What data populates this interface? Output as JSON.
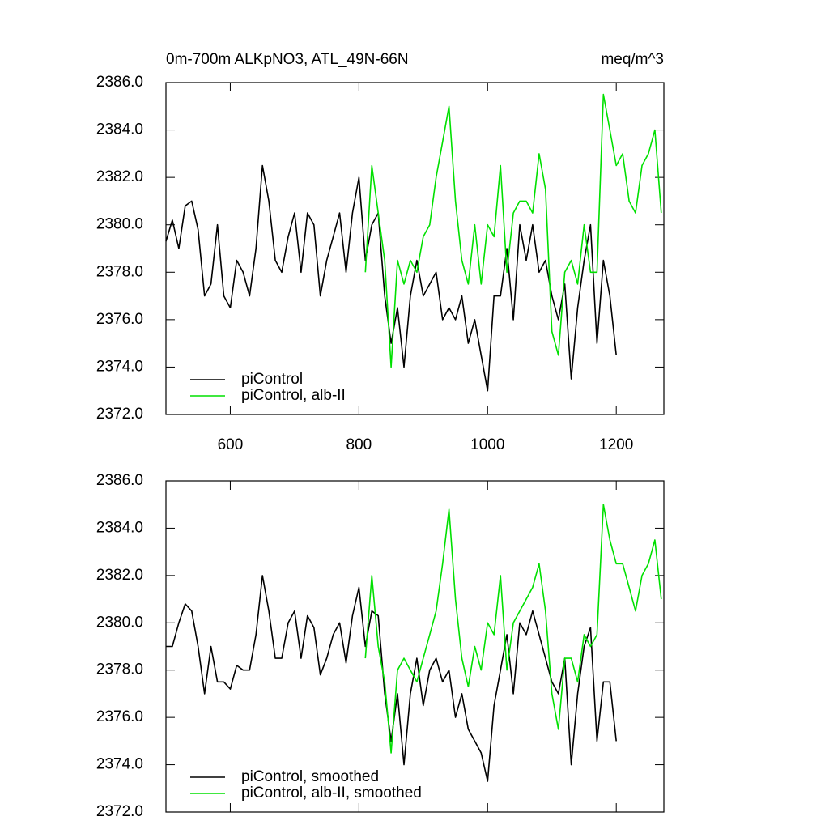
{
  "chart_data": [
    {
      "type": "line",
      "title": "0m-700m ALKpNO3, ATL_49N-66N",
      "units": "meq/m^3",
      "x": [
        500,
        510,
        520,
        530,
        540,
        550,
        560,
        570,
        580,
        590,
        600,
        610,
        620,
        630,
        640,
        650,
        660,
        670,
        680,
        690,
        700,
        710,
        720,
        730,
        740,
        750,
        760,
        770,
        780,
        790,
        800,
        810,
        820,
        830,
        840,
        850,
        860,
        870,
        880,
        890,
        900,
        910,
        920,
        930,
        940,
        950,
        960,
        970,
        980,
        990,
        1000,
        1010,
        1020,
        1030,
        1040,
        1050,
        1060,
        1070,
        1080,
        1090,
        1100,
        1110,
        1120,
        1130,
        1140,
        1150,
        1160,
        1170,
        1180,
        1190,
        1200,
        1210,
        1220,
        1230,
        1240,
        1250,
        1260,
        1270
      ],
      "series": [
        {
          "name": "piControl",
          "color": "#000000",
          "values": [
            2379.3,
            2380.2,
            2379.0,
            2380.8,
            2381.0,
            2379.8,
            2377.0,
            2377.5,
            2380.0,
            2377.0,
            2376.5,
            2378.5,
            2378.0,
            2377.0,
            2379.0,
            2382.5,
            2381.0,
            2378.5,
            2378.0,
            2379.5,
            2380.5,
            2378.0,
            2380.5,
            2380.0,
            2377.0,
            2378.5,
            2379.5,
            2380.5,
            2378.0,
            2380.5,
            2382.0,
            2378.5,
            2380.0,
            2380.5,
            2377.0,
            2375.0,
            2376.5,
            2374.0,
            2377.0,
            2378.5,
            2377.0,
            2377.5,
            2378.0,
            2376.0,
            2376.5,
            2376.0,
            2377.0,
            2375.0,
            2376.0,
            2374.5,
            2373.0,
            2377.0,
            2377.0,
            2379.0,
            2376.0,
            2380.0,
            2378.5,
            2380.0,
            2378.0,
            2378.5,
            2377.0,
            2376.0,
            2377.5,
            2373.5,
            2376.5,
            2378.5,
            2380.0,
            2375.0,
            2378.5,
            2377.0,
            2374.5,
            null,
            null,
            null,
            null,
            null,
            null,
            null
          ]
        },
        {
          "name": "piControl, alb-II",
          "color": "#00e000",
          "values": [
            null,
            null,
            null,
            null,
            null,
            null,
            null,
            null,
            null,
            null,
            null,
            null,
            null,
            null,
            null,
            null,
            null,
            null,
            null,
            null,
            null,
            null,
            null,
            null,
            null,
            null,
            null,
            null,
            null,
            null,
            null,
            2378.0,
            2382.5,
            2380.5,
            2378.5,
            2374.0,
            2378.5,
            2377.5,
            2378.5,
            2378.0,
            2379.5,
            2380.0,
            2382.0,
            2383.5,
            2385.0,
            2381.0,
            2378.5,
            2377.5,
            2380.0,
            2377.5,
            2380.0,
            2379.5,
            2382.5,
            2378.0,
            2380.5,
            2381.0,
            2381.0,
            2380.5,
            2383.0,
            2381.5,
            2375.5,
            2374.5,
            2378.0,
            2378.5,
            2377.5,
            2380.0,
            2378.0,
            2378.0,
            2385.5,
            2384.0,
            2382.5,
            2383.0,
            2381.0,
            2380.5,
            2382.5,
            2383.0,
            2384.0,
            2380.5
          ]
        }
      ],
      "xlim": [
        500,
        1274
      ],
      "xticks": [
        600,
        800,
        1000,
        1200
      ],
      "xtick_labels": true,
      "ylim": [
        2372,
        2386
      ],
      "yticks": [
        {
          "value": 2372,
          "label": "2372.0"
        },
        {
          "value": 2374,
          "label": "2374.0"
        },
        {
          "value": 2376,
          "label": "2376.0"
        },
        {
          "value": 2378,
          "label": "2378.0"
        },
        {
          "value": 2380,
          "label": "2380.0"
        },
        {
          "value": 2382,
          "label": "2382.0"
        },
        {
          "value": 2384,
          "label": "2384.0"
        },
        {
          "value": 2386,
          "label": "2386.0"
        }
      ],
      "legend": "lower left"
    },
    {
      "type": "line",
      "x": [
        500,
        510,
        520,
        530,
        540,
        550,
        560,
        570,
        580,
        590,
        600,
        610,
        620,
        630,
        640,
        650,
        660,
        670,
        680,
        690,
        700,
        710,
        720,
        730,
        740,
        750,
        760,
        770,
        780,
        790,
        800,
        810,
        820,
        830,
        840,
        850,
        860,
        870,
        880,
        890,
        900,
        910,
        920,
        930,
        940,
        950,
        960,
        970,
        980,
        990,
        1000,
        1010,
        1020,
        1030,
        1040,
        1050,
        1060,
        1070,
        1080,
        1090,
        1100,
        1110,
        1120,
        1130,
        1140,
        1150,
        1160,
        1170,
        1180,
        1190,
        1200,
        1210,
        1220,
        1230,
        1240,
        1250,
        1260,
        1270
      ],
      "series": [
        {
          "name": "piControl, smoothed",
          "color": "#000000",
          "values": [
            2379.0,
            2379.0,
            2380.0,
            2380.8,
            2380.5,
            2379.0,
            2377.0,
            2379.0,
            2377.5,
            2377.5,
            2377.2,
            2378.2,
            2378.0,
            2378.0,
            2379.5,
            2382.0,
            2380.5,
            2378.5,
            2378.5,
            2380.0,
            2380.5,
            2378.5,
            2380.3,
            2379.8,
            2377.8,
            2378.5,
            2379.5,
            2380.0,
            2378.3,
            2380.3,
            2381.5,
            2379.0,
            2380.5,
            2380.3,
            2377.0,
            2375.0,
            2377.0,
            2374.0,
            2377.0,
            2378.5,
            2376.5,
            2378.0,
            2378.5,
            2377.5,
            2378.0,
            2376.0,
            2377.0,
            2375.5,
            2375.0,
            2374.5,
            2373.3,
            2376.5,
            2378.0,
            2379.5,
            2377.0,
            2380.0,
            2379.5,
            2380.5,
            2379.5,
            2378.5,
            2377.5,
            2377.0,
            2378.5,
            2374.0,
            2377.0,
            2379.0,
            2379.8,
            2375.0,
            2377.5,
            2377.5,
            2375.0,
            null,
            null,
            null,
            null,
            null,
            null,
            null
          ]
        },
        {
          "name": "piControl, alb-II, smoothed",
          "color": "#00e000",
          "values": [
            null,
            null,
            null,
            null,
            null,
            null,
            null,
            null,
            null,
            null,
            null,
            null,
            null,
            null,
            null,
            null,
            null,
            null,
            null,
            null,
            null,
            null,
            null,
            null,
            null,
            null,
            null,
            null,
            null,
            null,
            null,
            2378.5,
            2382.0,
            2379.0,
            2377.5,
            2374.5,
            2378.0,
            2378.5,
            2378.0,
            2377.5,
            2378.5,
            2379.5,
            2380.5,
            2382.5,
            2384.8,
            2381.0,
            2378.5,
            2377.3,
            2379.0,
            2378.0,
            2380.0,
            2379.5,
            2382.0,
            2378.0,
            2380.0,
            2380.5,
            2381.0,
            2381.5,
            2382.5,
            2380.5,
            2377.0,
            2375.5,
            2378.5,
            2378.5,
            2377.5,
            2379.5,
            2379.0,
            2379.5,
            2385.0,
            2383.5,
            2382.5,
            2382.5,
            2381.5,
            2380.5,
            2382.0,
            2382.5,
            2383.5,
            2381.0
          ]
        }
      ],
      "xlim": [
        500,
        1274
      ],
      "xticks": [
        600,
        800,
        1000,
        1200
      ],
      "xtick_labels": false,
      "ylim": [
        2372,
        2386
      ],
      "yticks": [
        {
          "value": 2372,
          "label": "2372.0"
        },
        {
          "value": 2374,
          "label": "2374.0"
        },
        {
          "value": 2376,
          "label": "2376.0"
        },
        {
          "value": 2378,
          "label": "2378.0"
        },
        {
          "value": 2380,
          "label": "2380.0"
        },
        {
          "value": 2382,
          "label": "2382.0"
        },
        {
          "value": 2384,
          "label": "2384.0"
        },
        {
          "value": 2386,
          "label": "2386.0"
        }
      ],
      "legend": "lower left"
    }
  ]
}
